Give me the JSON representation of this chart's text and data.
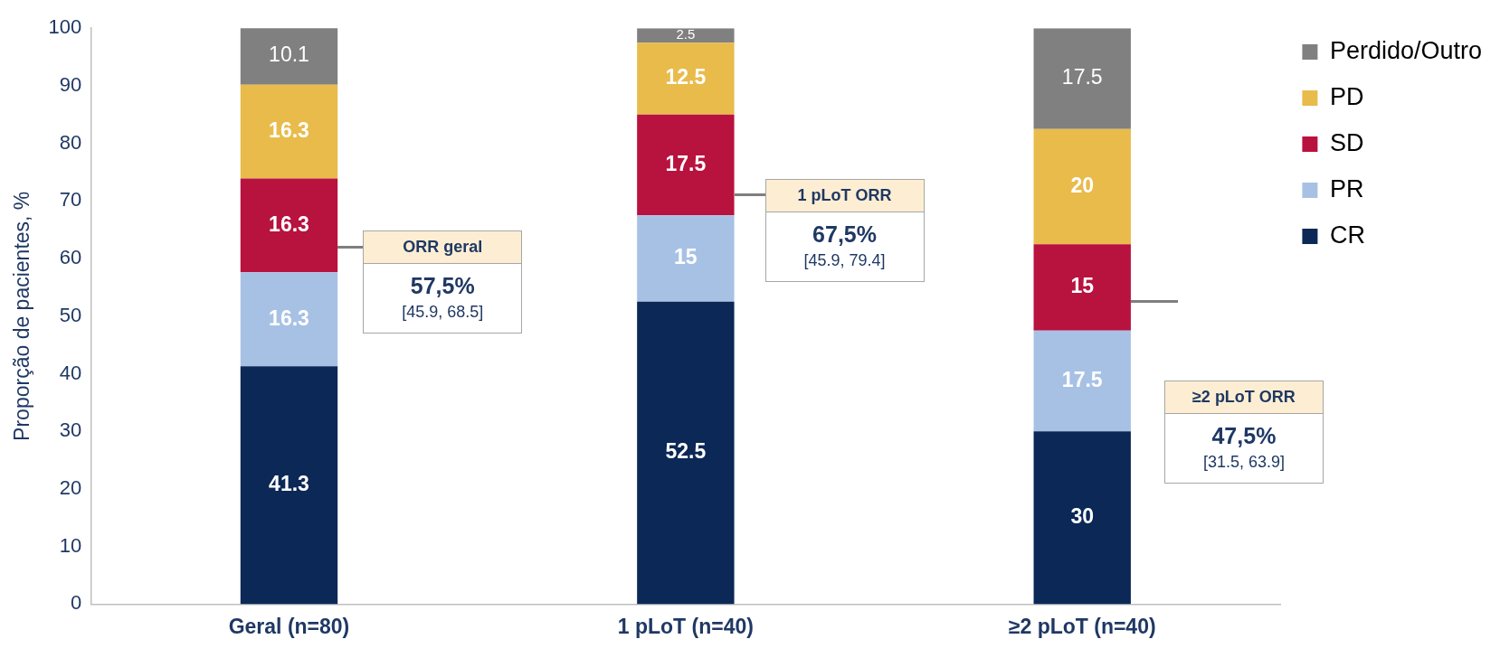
{
  "chart_data": {
    "type": "bar",
    "stacked": true,
    "ylabel": "Proporção de pacientes, %",
    "categories": [
      "Geral (n=80)",
      "1 pLoT (n=40)",
      "≥2 pLoT (n=40)"
    ],
    "series": [
      {
        "name": "CR",
        "color": "#0b2856",
        "values": [
          41.3,
          52.5,
          30
        ]
      },
      {
        "name": "PR",
        "color": "#a7c1e5",
        "values": [
          16.3,
          15,
          17.5
        ]
      },
      {
        "name": "SD",
        "color": "#b8123f",
        "values": [
          16.3,
          17.5,
          15
        ]
      },
      {
        "name": "PD",
        "color": "#e8bb4b",
        "values": [
          16.3,
          12.5,
          20
        ]
      },
      {
        "name": "Perdido/Outro",
        "color": "#808080",
        "values": [
          10.1,
          2.5,
          17.5
        ]
      }
    ],
    "ylim": [
      0,
      100
    ],
    "yticks": [
      0,
      10,
      20,
      30,
      40,
      50,
      60,
      70,
      80,
      90,
      100
    ],
    "grid": false,
    "legend": "top right",
    "data_labels": true,
    "annotations": [
      "ORR geral\n57,5%\n[45.9, 68.5]",
      "1 pLoT ORR\n67,5%\n[45.9, 79.4]",
      "≥2 pLoT ORR\n47,5%\n[31.5, 63.9]"
    ]
  }
}
